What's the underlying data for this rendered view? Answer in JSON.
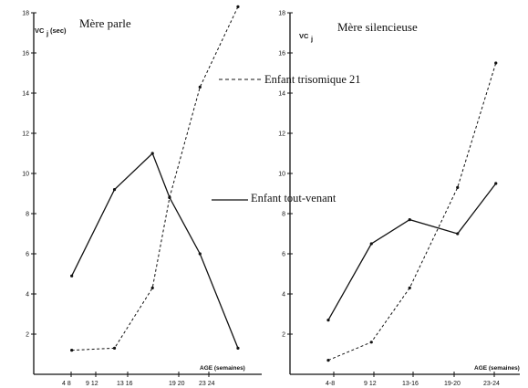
{
  "chart_data": [
    {
      "type": "line",
      "title": "Mère parle",
      "ylabel": "VC",
      "ylabel_sub": "j",
      "ylabel_unit": "(sec)",
      "xlabel": "AGE (semaines)",
      "categories": [
        "4 8",
        "9 12",
        "13 16",
        "19 20",
        "23 24"
      ],
      "x": [
        6,
        10.5,
        14.5,
        19.5,
        23.5
      ],
      "ylim": [
        0,
        18
      ],
      "yticks": [
        "2",
        "4",
        "6",
        "8",
        "10",
        "12",
        "14",
        "16",
        "18"
      ],
      "series": [
        {
          "name": "Enfant trisomique 21",
          "style": "dashed",
          "x": [
            6,
            10.5,
            14.5,
            16.3,
            19.5,
            23.5
          ],
          "values": [
            1.2,
            1.3,
            4.3,
            8.8,
            14.3,
            18.3
          ]
        },
        {
          "name": "Enfant tout-venant",
          "style": "solid",
          "x": [
            6,
            10.5,
            14.5,
            16.3,
            19.5,
            23.5
          ],
          "values": [
            4.9,
            9.2,
            11.0,
            8.8,
            6.0,
            1.3
          ]
        }
      ]
    },
    {
      "type": "line",
      "title": "Mère silencieuse",
      "ylabel": "VC",
      "ylabel_sub": "j",
      "xlabel": "AGE (semaines)",
      "categories": [
        "4-8",
        "9 12",
        "13-16",
        "19-20",
        "23-24"
      ],
      "x": [
        6,
        10.5,
        14.5,
        19.5,
        23.5
      ],
      "ylim": [
        0,
        18
      ],
      "yticks": [
        "2",
        "4",
        "6",
        "8",
        "10",
        "12",
        "14",
        "16",
        "18"
      ],
      "series": [
        {
          "name": "Enfant trisomique 21",
          "style": "dashed",
          "x": [
            6,
            10.5,
            14.5,
            19.5,
            23.5
          ],
          "values": [
            0.7,
            1.6,
            4.3,
            9.3,
            15.5
          ]
        },
        {
          "name": "Enfant tout-venant",
          "style": "solid",
          "x": [
            6,
            10.5,
            14.5,
            19.5,
            23.5
          ],
          "values": [
            2.7,
            6.5,
            7.7,
            7.0,
            9.5
          ]
        }
      ]
    }
  ],
  "legend": {
    "dashed_label": "Enfant trisomique 21",
    "solid_label": "Enfant tout-venant",
    "colors": {
      "ink": "#111111"
    }
  }
}
